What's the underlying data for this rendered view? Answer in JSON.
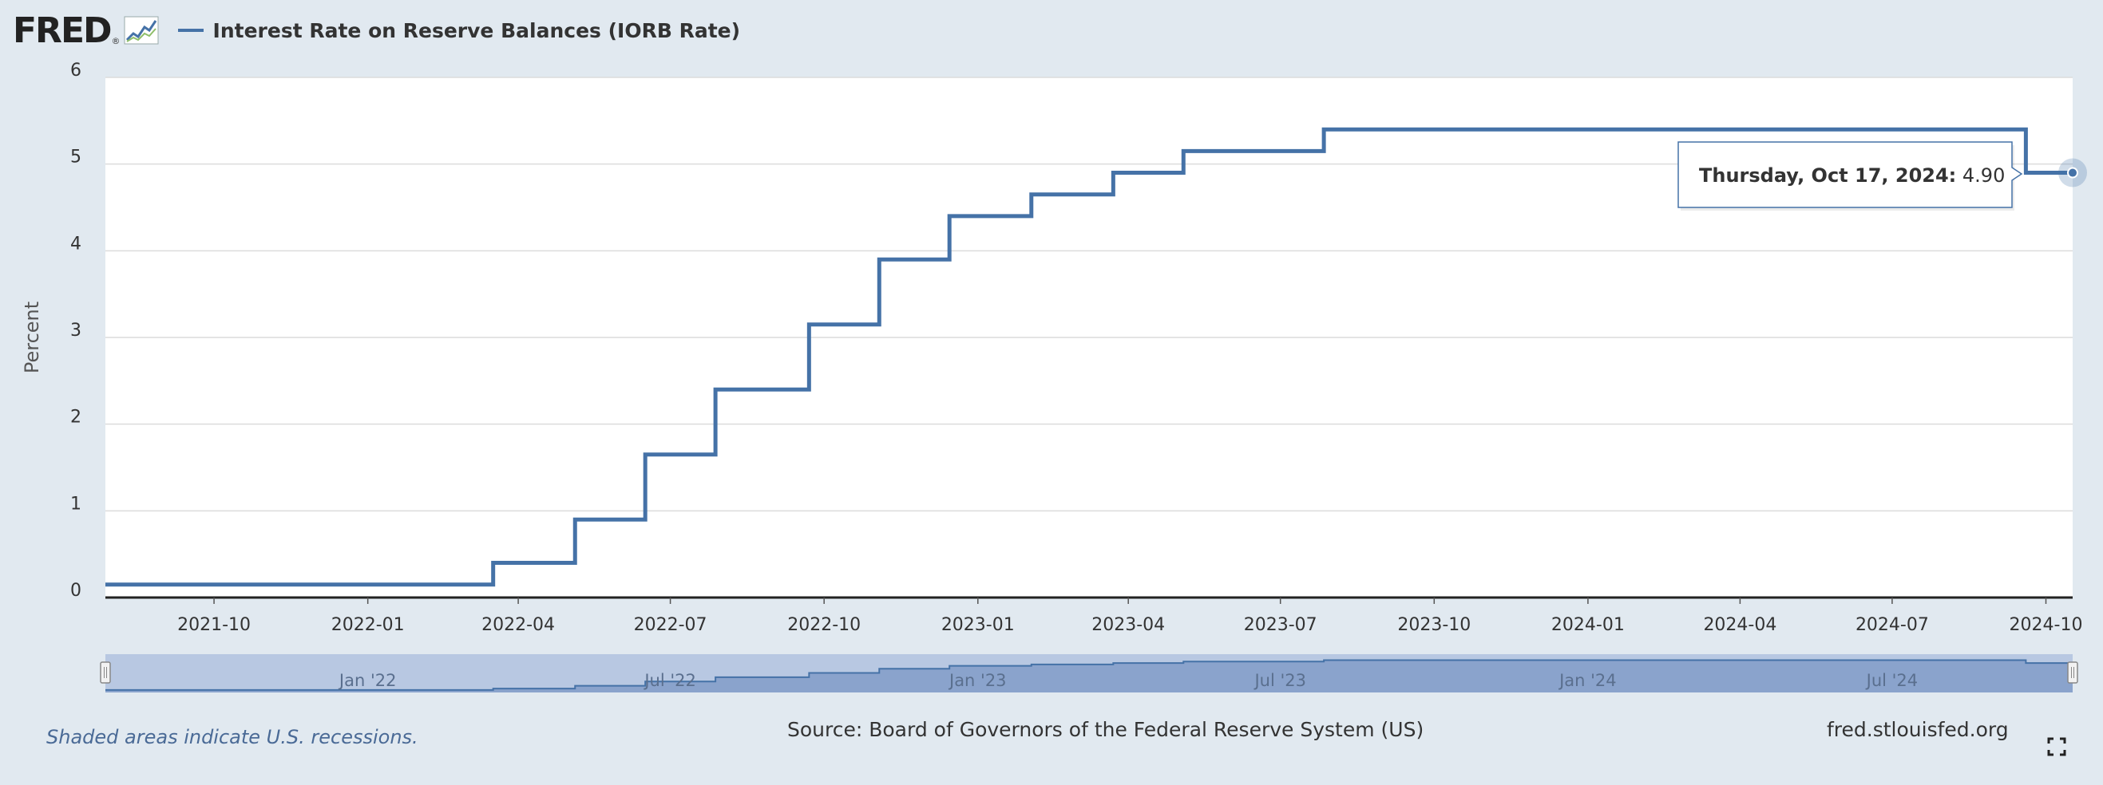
{
  "header": {
    "logo": "FRED",
    "logo_mark": "®",
    "logo_icon": "fred-graph-icon"
  },
  "chart_data": {
    "type": "line",
    "title": "",
    "xlabel": "",
    "ylabel": "Percent",
    "ylim": [
      0,
      6
    ],
    "yticks": [
      0,
      1,
      2,
      3,
      4,
      5,
      6
    ],
    "xlim": [
      "2021-07-28",
      "2024-10-17"
    ],
    "xticks": [
      "2021-10",
      "2022-01",
      "2022-04",
      "2022-07",
      "2022-10",
      "2023-01",
      "2023-04",
      "2023-07",
      "2023-10",
      "2024-01",
      "2024-04",
      "2024-07",
      "2024-10"
    ],
    "grid": true,
    "legend": "top-left",
    "series": [
      {
        "name": "Interest Rate on Reserve Balances (IORB Rate)",
        "color": "#4572a7",
        "step": true,
        "x": [
          "2021-07-28",
          "2022-03-17",
          "2022-05-05",
          "2022-06-16",
          "2022-07-28",
          "2022-09-22",
          "2022-11-03",
          "2022-12-15",
          "2023-02-02",
          "2023-03-23",
          "2023-05-04",
          "2023-07-27",
          "2024-09-19",
          "2024-10-17"
        ],
        "y": [
          0.15,
          0.4,
          0.9,
          1.65,
          2.4,
          3.15,
          3.9,
          4.4,
          4.65,
          4.9,
          5.15,
          5.4,
          4.9,
          4.9
        ]
      }
    ],
    "tooltip": {
      "date": "Thursday, Oct 17, 2024:",
      "value": "4.90"
    },
    "navigator": {
      "labels": [
        "Jan '22",
        "Jul '22",
        "Jan '23",
        "Jul '23",
        "Jan '24",
        "Jul '24"
      ],
      "dates": [
        "2022-01-01",
        "2022-07-01",
        "2023-01-01",
        "2023-07-01",
        "2024-01-01",
        "2024-07-01"
      ]
    }
  },
  "footer": {
    "recessions_note": "Shaded areas indicate U.S. recessions.",
    "source": "Source: Board of Governors of the Federal Reserve System (US)",
    "site": "fred.stlouisfed.org"
  },
  "colors": {
    "background": "#e1e9f0",
    "plot_bg": "#ffffff",
    "series": "#4572a7",
    "navigator_fill": "#8aa3cc"
  }
}
